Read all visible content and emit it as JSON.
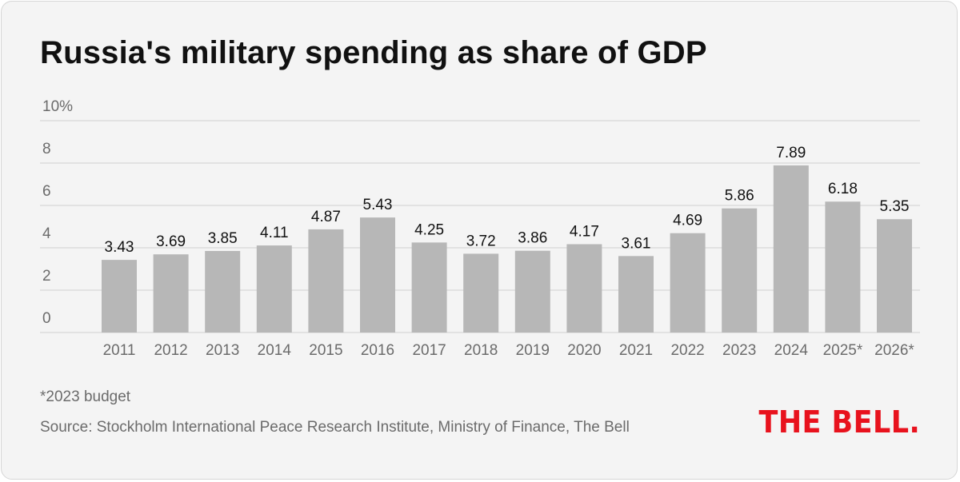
{
  "header": {
    "title": "Russia's military spending as share of GDP"
  },
  "chart_data": {
    "type": "bar",
    "title": "Russia's military spending as share of GDP",
    "xlabel": "",
    "ylabel": "",
    "unit": "%",
    "ylim": [
      0,
      10
    ],
    "yticks": [
      "0",
      "2",
      "4",
      "6",
      "8",
      "10%"
    ],
    "yticks_values": [
      0,
      2,
      4,
      6,
      8,
      10
    ],
    "grid": true,
    "categories": [
      "2011",
      "2012",
      "2013",
      "2014",
      "2015",
      "2016",
      "2017",
      "2018",
      "2019",
      "2020",
      "2021",
      "2022",
      "2023",
      "2024",
      "2025*",
      "2026*"
    ],
    "values": [
      3.43,
      3.69,
      3.85,
      4.11,
      4.87,
      5.43,
      4.25,
      3.72,
      3.86,
      4.17,
      3.61,
      4.69,
      5.86,
      7.89,
      6.18,
      5.35
    ],
    "value_labels": [
      "3.43",
      "3.69",
      "3.85",
      "4.11",
      "4.87",
      "5.43",
      "4.25",
      "3.72",
      "3.86",
      "4.17",
      "3.61",
      "4.69",
      "5.86",
      "7.89",
      "6.18",
      "5.35"
    ],
    "bar_color": "#b7b7b7",
    "gridline_color": "#dcdcdc"
  },
  "footer": {
    "footnote": "*2023 budget",
    "source": "Source: Stockholm International Peace Research Institute, Ministry of Finance, The Bell",
    "logo_text": "THE BELL.",
    "logo_color": "#e8121d"
  }
}
